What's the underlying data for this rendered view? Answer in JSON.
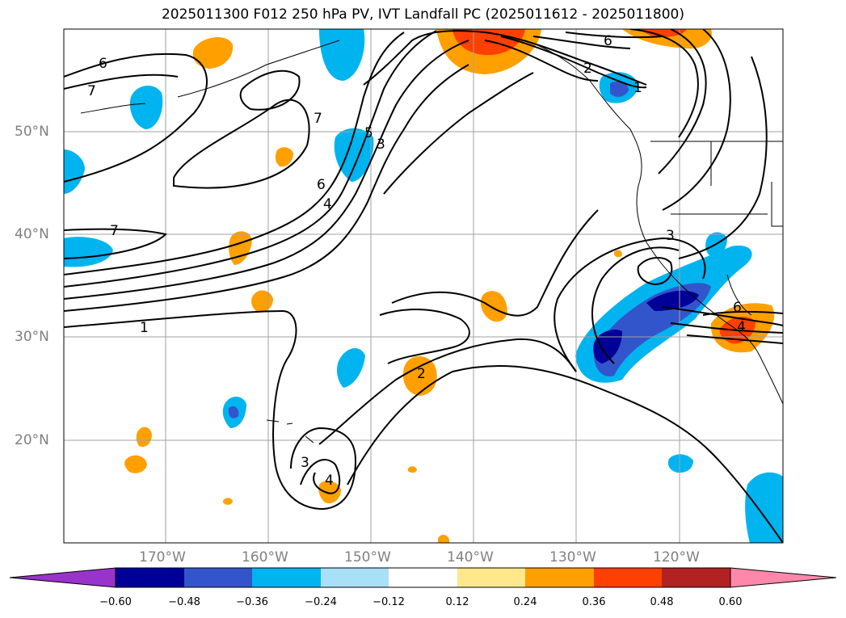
{
  "title": "2025011300 F012 250 hPa PV, IVT Landfall PC (2025011612 - 2025011800)",
  "lat_labels": [
    "50°N",
    "40°N",
    "30°N",
    "20°N"
  ],
  "lon_labels": [
    "170°W",
    "160°W",
    "150°W",
    "140°W",
    "130°W",
    "120°W"
  ],
  "contour_labels": [
    "6",
    "7",
    "7",
    "1",
    "7",
    "6",
    "4",
    "5",
    "3",
    "2",
    "3",
    "4",
    "6",
    "2",
    "1",
    "3",
    "6",
    "4"
  ],
  "colorbar": {
    "ticks": [
      "−0.60",
      "−0.48",
      "−0.36",
      "−0.24",
      "−0.12",
      "0.12",
      "0.24",
      "0.36",
      "0.48",
      "0.60"
    ],
    "colors": [
      "#9933cc",
      "#000099",
      "#3355cc",
      "#00b4f0",
      "#a8e0f8",
      "#ffffff",
      "#ffe88c",
      "#ffa000",
      "#ff4000",
      "#b22222",
      "#ff88aa"
    ]
  },
  "legend_note": ""
}
